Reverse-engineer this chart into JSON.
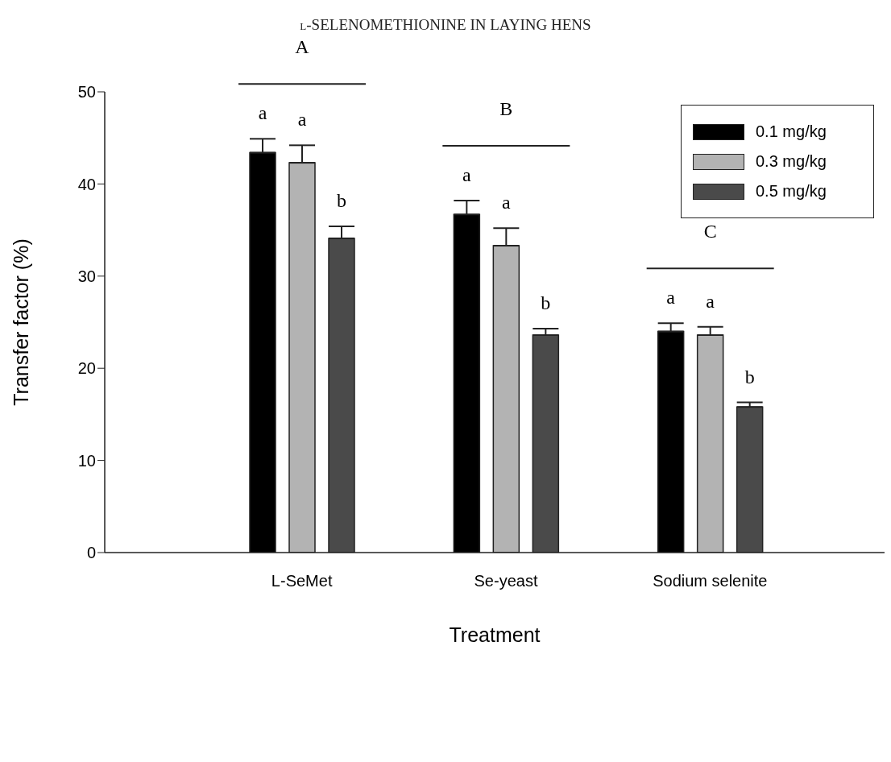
{
  "chart_data": {
    "type": "bar",
    "title": "l-SELENOMETHIONINE IN LAYING HENS",
    "xlabel": "Treatment",
    "ylabel": "Transfer factor (%)",
    "categories": [
      "L-SeMet",
      "Se-yeast",
      "Sodium selenite"
    ],
    "series": [
      {
        "name": "0.1 mg/kg",
        "color": "#000000",
        "values": [
          43.4,
          36.7,
          24.0
        ],
        "errors": [
          [
            43.4,
            44.9
          ],
          [
            36.7,
            38.2
          ],
          [
            24.0,
            24.9
          ]
        ]
      },
      {
        "name": "0.3 mg/kg",
        "color": "#b3b3b3",
        "values": [
          42.3,
          33.3,
          23.6
        ],
        "errors": [
          [
            42.3,
            44.2
          ],
          [
            33.3,
            35.2
          ],
          [
            23.6,
            24.5
          ]
        ]
      },
      {
        "name": "0.5 mg/kg",
        "color": "#4a4a4a",
        "values": [
          34.1,
          23.6,
          15.8
        ],
        "errors": [
          [
            34.1,
            35.4
          ],
          [
            23.6,
            24.3
          ],
          [
            15.8,
            16.3
          ]
        ]
      }
    ],
    "ylim": [
      0,
      50
    ],
    "yticks": [
      0,
      10,
      20,
      30,
      40,
      50
    ],
    "legend": "top right",
    "annotations": [
      "A",
      "B",
      "C",
      "a",
      "a",
      "b",
      "a",
      "a",
      "b",
      "a",
      "a",
      "b"
    ]
  }
}
